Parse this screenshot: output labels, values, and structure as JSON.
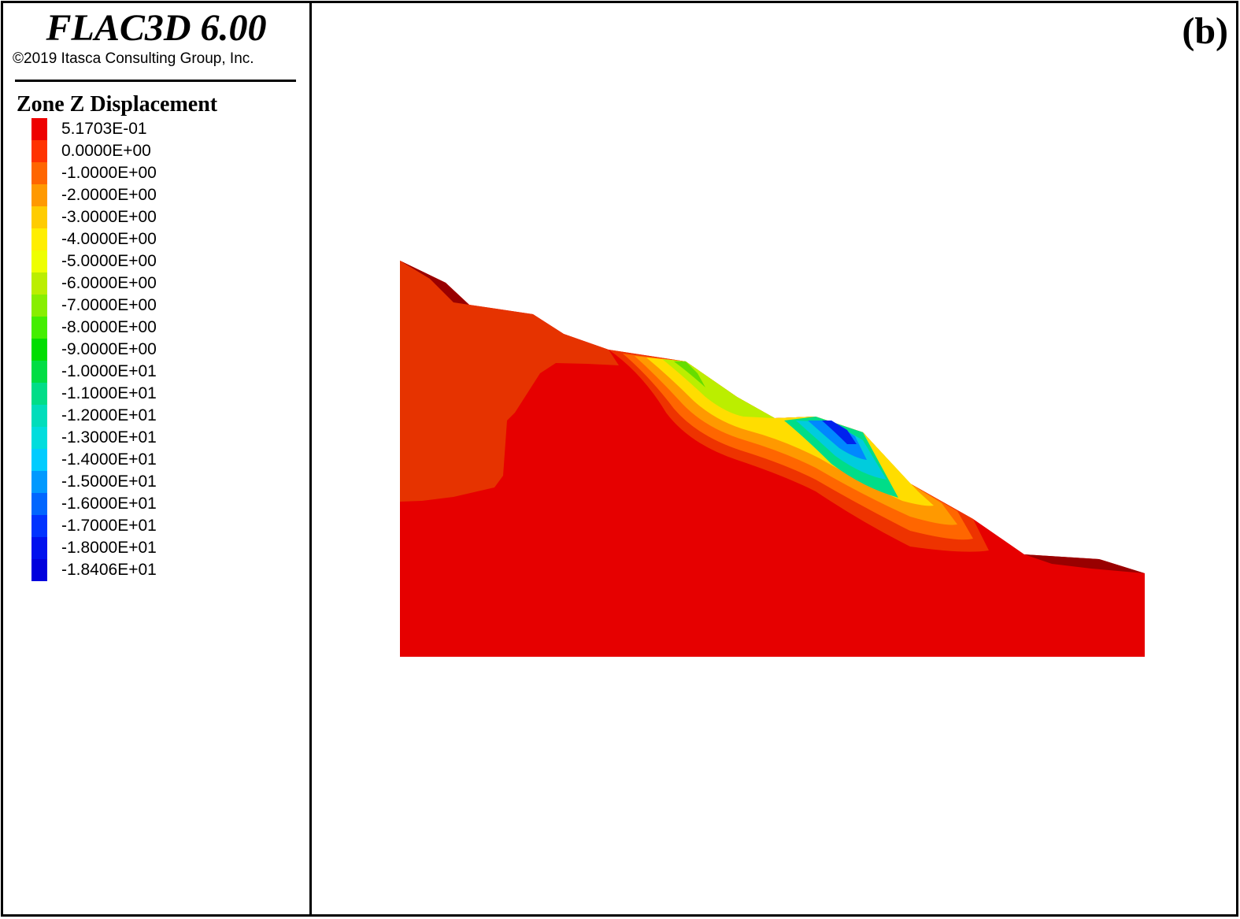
{
  "app": {
    "title": "FLAC3D 6.00",
    "copyright": "©2019 Itasca Consulting Group, Inc."
  },
  "panel_label": "(b)",
  "legend": {
    "title": "Zone Z Displacement",
    "items": [
      {
        "value": "5.1703E-01",
        "color": "#ee0000"
      },
      {
        "value": "0.0000E+00",
        "color": "#ff3300"
      },
      {
        "value": "-1.0000E+00",
        "color": "#ff6600"
      },
      {
        "value": "-2.0000E+00",
        "color": "#ff9900"
      },
      {
        "value": "-3.0000E+00",
        "color": "#ffcc00"
      },
      {
        "value": "-4.0000E+00",
        "color": "#ffee00"
      },
      {
        "value": "-5.0000E+00",
        "color": "#eeff00"
      },
      {
        "value": "-6.0000E+00",
        "color": "#bbee00"
      },
      {
        "value": "-7.0000E+00",
        "color": "#88ee00"
      },
      {
        "value": "-8.0000E+00",
        "color": "#44ee00"
      },
      {
        "value": "-9.0000E+00",
        "color": "#00dd00"
      },
      {
        "value": "-1.0000E+01",
        "color": "#00dd44"
      },
      {
        "value": "-1.1000E+01",
        "color": "#00dd88"
      },
      {
        "value": "-1.2000E+01",
        "color": "#00ddbb"
      },
      {
        "value": "-1.3000E+01",
        "color": "#00dddd"
      },
      {
        "value": "-1.4000E+01",
        "color": "#00ccff"
      },
      {
        "value": "-1.5000E+01",
        "color": "#0099ff"
      },
      {
        "value": "-1.6000E+01",
        "color": "#0066ff"
      },
      {
        "value": "-1.7000E+01",
        "color": "#0033ff"
      },
      {
        "value": "-1.8000E+01",
        "color": "#0011ee"
      },
      {
        "value": "-1.8406E+01",
        "color": "#0000dd"
      }
    ]
  },
  "model_colors": {
    "base": "#e60000",
    "upper_slope": "#e63300",
    "shadow": "#990000"
  }
}
